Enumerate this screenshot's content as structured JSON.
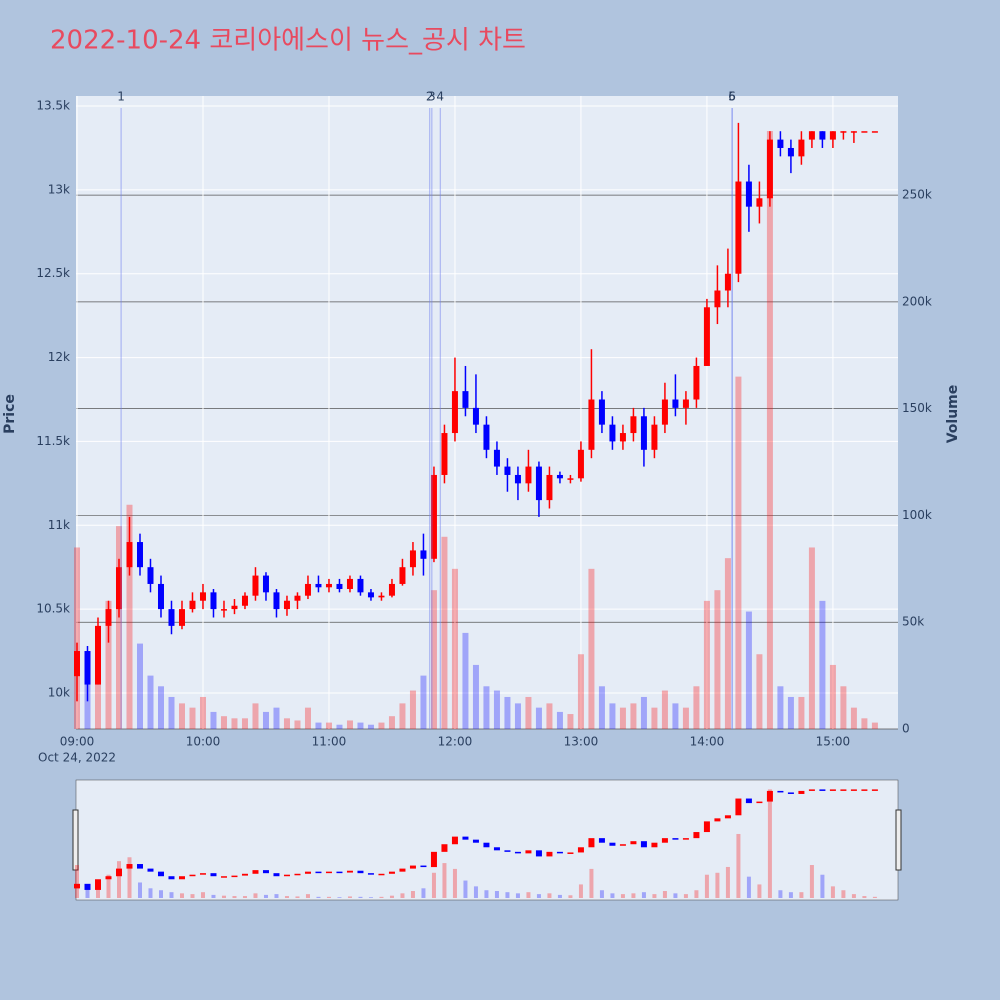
{
  "chart_data": {
    "type": "candlestick",
    "title": "2022-10-24 코리아에스이 뉴스_공시 차트",
    "y_title": "Price",
    "y2_title": "Volume",
    "x_date_label": "Oct 24, 2022",
    "increasing_color": "#ff0000",
    "decreasing_color": "#0000ff",
    "xlim": [
      "09:00",
      "15:31"
    ],
    "xticks": [
      "09:00",
      "10:00",
      "11:00",
      "12:00",
      "13:00",
      "14:00",
      "15:00"
    ],
    "ylim": [
      9785,
      13560
    ],
    "yticks": [
      {
        "value": 10000,
        "label": "10k"
      },
      {
        "value": 10500,
        "label": "10.5k"
      },
      {
        "value": 11000,
        "label": "11k"
      },
      {
        "value": 11500,
        "label": "11.5k"
      },
      {
        "value": 12000,
        "label": "12k"
      },
      {
        "value": 12500,
        "label": "12.5k"
      },
      {
        "value": 13000,
        "label": "13k"
      },
      {
        "value": 13500,
        "label": "13.5k"
      }
    ],
    "y2lim": [
      0,
      296400
    ],
    "y2ticks": [
      0,
      {
        "value": 50000,
        "label": "50k"
      },
      {
        "value": 100000,
        "label": "100k"
      },
      {
        "value": 150000,
        "label": "150k"
      },
      {
        "value": 200000,
        "label": "200k"
      },
      {
        "value": 250000,
        "label": "250k"
      }
    ],
    "news": [
      {
        "label": "1",
        "time": "09:21"
      },
      {
        "label": "2",
        "time": "11:48"
      },
      {
        "label": "3",
        "time": "11:49"
      },
      {
        "label": "4",
        "time": "11:53"
      },
      {
        "label": "5",
        "time": "14:12"
      },
      {
        "label": "6",
        "time": "14:12"
      }
    ],
    "x": [
      "09:00",
      "09:05",
      "09:10",
      "09:15",
      "09:20",
      "09:25",
      "09:30",
      "09:35",
      "09:40",
      "09:45",
      "09:50",
      "09:55",
      "10:00",
      "10:05",
      "10:10",
      "10:15",
      "10:20",
      "10:25",
      "10:30",
      "10:35",
      "10:40",
      "10:45",
      "10:50",
      "10:55",
      "11:00",
      "11:05",
      "11:10",
      "11:15",
      "11:20",
      "11:25",
      "11:30",
      "11:35",
      "11:40",
      "11:45",
      "11:50",
      "11:55",
      "12:00",
      "12:05",
      "12:10",
      "12:15",
      "12:20",
      "12:25",
      "12:30",
      "12:35",
      "12:40",
      "12:45",
      "12:50",
      "12:55",
      "13:00",
      "13:05",
      "13:10",
      "13:15",
      "13:20",
      "13:25",
      "13:30",
      "13:35",
      "13:40",
      "13:45",
      "13:50",
      "13:55",
      "14:00",
      "14:05",
      "14:10",
      "14:15",
      "14:20",
      "14:25",
      "14:30",
      "14:35",
      "14:40",
      "14:45",
      "14:50",
      "14:55",
      "15:00",
      "15:05",
      "15:10",
      "15:15",
      "15:20"
    ],
    "open": [
      10100,
      10250,
      10050,
      10400,
      10500,
      10750,
      10900,
      10750,
      10650,
      10500,
      10400,
      10500,
      10550,
      10600,
      10500,
      10500,
      10520,
      10580,
      10700,
      10600,
      10500,
      10550,
      10580,
      10650,
      10630,
      10650,
      10620,
      10680,
      10600,
      10570,
      10580,
      10650,
      10750,
      10850,
      10800,
      11300,
      11550,
      11800,
      11700,
      11600,
      11450,
      11350,
      11300,
      11250,
      11350,
      11150,
      11300,
      11280,
      11280,
      11450,
      11750,
      11600,
      11500,
      11550,
      11650,
      11450,
      11600,
      11750,
      11700,
      11750,
      11950,
      12300,
      12400,
      12500,
      13050,
      12900,
      12950,
      13300,
      13250,
      13200,
      13300,
      13350,
      13300,
      13350,
      13350,
      13350,
      13350
    ],
    "high": [
      10300,
      10280,
      10450,
      10550,
      10800,
      11050,
      10950,
      10800,
      10700,
      10550,
      10550,
      10600,
      10650,
      10620,
      10550,
      10560,
      10600,
      10750,
      10720,
      10620,
      10580,
      10600,
      10700,
      10700,
      10680,
      10680,
      10700,
      10700,
      10620,
      10600,
      10680,
      10800,
      10900,
      10950,
      11350,
      11600,
      12000,
      11950,
      11900,
      11650,
      11500,
      11400,
      11350,
      11450,
      11380,
      11350,
      11320,
      11300,
      11500,
      12050,
      11800,
      11650,
      11600,
      11700,
      11700,
      11650,
      11850,
      11900,
      11800,
      12000,
      12350,
      12550,
      12650,
      13400,
      13150,
      13050,
      13350,
      13350,
      13300,
      13350,
      13350,
      13350,
      13350,
      13350,
      13350,
      13350,
      13350
    ],
    "low": [
      9950,
      9950,
      10050,
      10300,
      10450,
      10700,
      10700,
      10600,
      10450,
      10350,
      10380,
      10480,
      10500,
      10450,
      10450,
      10470,
      10500,
      10550,
      10550,
      10450,
      10460,
      10500,
      10560,
      10600,
      10600,
      10600,
      10600,
      10580,
      10550,
      10550,
      10570,
      10640,
      10700,
      10700,
      10780,
      11250,
      11500,
      11650,
      11550,
      11400,
      11300,
      11200,
      11150,
      11200,
      11050,
      11100,
      11250,
      11250,
      11260,
      11400,
      11550,
      11450,
      11450,
      11500,
      11350,
      11400,
      11550,
      11650,
      11600,
      11700,
      11950,
      12200,
      12300,
      12450,
      12750,
      12800,
      12900,
      13200,
      13100,
      13150,
      13250,
      13250,
      13250,
      13300,
      13280,
      13350,
      13350
    ],
    "close": [
      10250,
      10050,
      10400,
      10500,
      10750,
      10900,
      10750,
      10650,
      10500,
      10400,
      10500,
      10550,
      10600,
      10500,
      10500,
      10520,
      10580,
      10700,
      10600,
      10500,
      10550,
      10580,
      10650,
      10630,
      10650,
      10620,
      10680,
      10600,
      10570,
      10580,
      10650,
      10750,
      10850,
      10800,
      11300,
      11550,
      11800,
      11700,
      11600,
      11450,
      11350,
      11300,
      11250,
      11350,
      11150,
      11300,
      11280,
      11280,
      11450,
      11750,
      11600,
      11500,
      11550,
      11650,
      11450,
      11600,
      11750,
      11700,
      11750,
      11950,
      12300,
      12400,
      12500,
      13050,
      12900,
      12950,
      13300,
      13250,
      13200,
      13300,
      13350,
      13300,
      13350,
      13350,
      13350,
      13350,
      13350
    ],
    "volume": [
      85000,
      30000,
      45000,
      60000,
      95000,
      105000,
      40000,
      25000,
      20000,
      15000,
      12000,
      10000,
      15000,
      8000,
      6000,
      5000,
      5000,
      12000,
      8000,
      10000,
      5000,
      4000,
      10000,
      3000,
      3000,
      2000,
      4000,
      3000,
      2000,
      3000,
      6000,
      12000,
      18000,
      25000,
      65000,
      90000,
      75000,
      45000,
      30000,
      20000,
      18000,
      15000,
      12000,
      15000,
      10000,
      12000,
      8000,
      7000,
      35000,
      75000,
      20000,
      12000,
      10000,
      12000,
      15000,
      10000,
      18000,
      12000,
      10000,
      20000,
      60000,
      65000,
      80000,
      165000,
      55000,
      35000,
      280000,
      20000,
      15000,
      15000,
      85000,
      60000,
      30000,
      20000,
      10000,
      5000,
      3000
    ]
  }
}
